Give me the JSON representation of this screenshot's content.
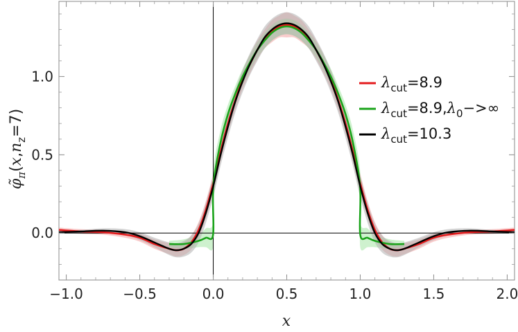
{
  "chart_data": {
    "type": "line",
    "title": "",
    "xlabel": "x",
    "ylabel": "φ̃π(x,nz=7)",
    "xlim": [
      -1.05,
      2.05
    ],
    "ylim": [
      -0.3,
      1.48
    ],
    "xticks": [
      -1.0,
      -0.5,
      0.0,
      0.5,
      1.0,
      1.5,
      2.0
    ],
    "xtick_labels": [
      "−1.0",
      "−0.5",
      "0.0",
      "0.5",
      "1.0",
      "1.5",
      "2.0"
    ],
    "yticks": [
      0.0,
      0.5,
      1.0
    ],
    "ytick_labels": [
      "0.0",
      "0.5",
      "1.0"
    ],
    "grid": false,
    "legend_position": "right",
    "series": [
      {
        "name": "λcut=8.9",
        "legend_parts": [
          {
            "t": "λ",
            "i": true
          },
          {
            "t": "cut",
            "sub": true
          },
          {
            "t": "=8.9"
          }
        ],
        "color": "#e31a1c",
        "band_color": "#f4a3a3",
        "x": [
          -1.05,
          -0.9,
          -0.75,
          -0.6,
          -0.5,
          -0.4,
          -0.3,
          -0.25,
          -0.2,
          -0.15,
          -0.1,
          -0.05,
          0.0,
          0.05,
          0.1,
          0.15,
          0.2,
          0.25,
          0.3,
          0.35,
          0.4,
          0.45,
          0.5,
          0.55,
          0.6,
          0.65,
          0.7,
          0.75,
          0.8,
          0.85,
          0.9,
          0.95,
          1.0,
          1.05,
          1.1,
          1.15,
          1.2,
          1.25,
          1.3,
          1.4,
          1.5,
          1.6,
          1.75,
          1.9,
          2.05
        ],
        "y": [
          0.02,
          0.01,
          0.005,
          -0.01,
          -0.03,
          -0.07,
          -0.1,
          -0.11,
          -0.1,
          -0.06,
          0.02,
          0.15,
          0.32,
          0.52,
          0.7,
          0.85,
          0.98,
          1.08,
          1.17,
          1.24,
          1.29,
          1.32,
          1.33,
          1.32,
          1.29,
          1.24,
          1.17,
          1.08,
          0.98,
          0.85,
          0.7,
          0.52,
          0.32,
          0.15,
          0.02,
          -0.06,
          -0.1,
          -0.11,
          -0.1,
          -0.07,
          -0.03,
          -0.01,
          0.005,
          0.01,
          0.02
        ],
        "band": [
          0.015,
          0.015,
          0.015,
          0.02,
          0.025,
          0.03,
          0.035,
          0.04,
          0.04,
          0.045,
          0.05,
          0.055,
          0.06,
          0.06,
          0.06,
          0.06,
          0.06,
          0.06,
          0.06,
          0.06,
          0.07,
          0.07,
          0.08,
          0.07,
          0.07,
          0.06,
          0.06,
          0.06,
          0.06,
          0.06,
          0.06,
          0.06,
          0.06,
          0.055,
          0.05,
          0.045,
          0.04,
          0.04,
          0.035,
          0.03,
          0.025,
          0.02,
          0.015,
          0.015,
          0.015
        ]
      },
      {
        "name": "λcut=8.9,λ0->∞",
        "legend_parts": [
          {
            "t": "λ",
            "i": true
          },
          {
            "t": "cut",
            "sub": true
          },
          {
            "t": "=8.9,"
          },
          {
            "t": "λ",
            "i": true
          },
          {
            "t": "0",
            "sub": true
          },
          {
            "t": "−>∞"
          }
        ],
        "color": "#1aa31a",
        "band_color": "#a6e6a6",
        "x": [
          -0.3,
          -0.2,
          -0.1,
          -0.05,
          -0.001,
          0.0,
          0.05,
          0.1,
          0.15,
          0.2,
          0.25,
          0.3,
          0.35,
          0.4,
          0.45,
          0.5,
          0.55,
          0.6,
          0.65,
          0.7,
          0.75,
          0.8,
          0.85,
          0.9,
          0.95,
          0.999,
          1.0,
          1.05,
          1.1,
          1.2,
          1.3
        ],
        "y": [
          -0.07,
          -0.07,
          -0.05,
          -0.03,
          -0.01,
          0.3,
          0.58,
          0.76,
          0.89,
          1.0,
          1.09,
          1.17,
          1.23,
          1.28,
          1.31,
          1.32,
          1.31,
          1.28,
          1.23,
          1.17,
          1.09,
          1.0,
          0.89,
          0.76,
          0.58,
          0.3,
          -0.01,
          -0.03,
          -0.05,
          -0.07,
          -0.07
        ],
        "band": [
          0.02,
          0.03,
          0.04,
          0.06,
          0.08,
          0.1,
          0.08,
          0.06,
          0.05,
          0.05,
          0.05,
          0.05,
          0.05,
          0.05,
          0.05,
          0.05,
          0.05,
          0.05,
          0.05,
          0.05,
          0.05,
          0.05,
          0.05,
          0.06,
          0.08,
          0.1,
          0.08,
          0.06,
          0.04,
          0.03,
          0.02
        ]
      },
      {
        "name": "λcut=10.3",
        "legend_parts": [
          {
            "t": "λ",
            "i": true
          },
          {
            "t": "cut",
            "sub": true
          },
          {
            "t": "=10.3"
          }
        ],
        "color": "#000000",
        "band_color": "#b0b0b0",
        "x": [
          -1.05,
          -0.9,
          -0.75,
          -0.6,
          -0.5,
          -0.4,
          -0.3,
          -0.25,
          -0.2,
          -0.15,
          -0.1,
          -0.05,
          0.0,
          0.05,
          0.1,
          0.15,
          0.2,
          0.25,
          0.3,
          0.35,
          0.4,
          0.45,
          0.5,
          0.55,
          0.6,
          0.65,
          0.7,
          0.75,
          0.8,
          0.85,
          0.9,
          0.95,
          1.0,
          1.05,
          1.1,
          1.15,
          1.2,
          1.25,
          1.3,
          1.4,
          1.5,
          1.6,
          1.75,
          1.9,
          2.05
        ],
        "y": [
          0.005,
          0.01,
          0.015,
          0.005,
          -0.02,
          -0.06,
          -0.1,
          -0.11,
          -0.1,
          -0.07,
          0.0,
          0.13,
          0.3,
          0.5,
          0.68,
          0.84,
          0.97,
          1.08,
          1.17,
          1.25,
          1.3,
          1.33,
          1.34,
          1.33,
          1.3,
          1.25,
          1.17,
          1.08,
          0.97,
          0.84,
          0.68,
          0.5,
          0.3,
          0.13,
          0.0,
          -0.07,
          -0.1,
          -0.11,
          -0.1,
          -0.06,
          -0.02,
          0.005,
          0.015,
          0.01,
          0.005
        ],
        "band": [
          0.01,
          0.01,
          0.015,
          0.02,
          0.025,
          0.03,
          0.04,
          0.045,
          0.05,
          0.055,
          0.06,
          0.065,
          0.07,
          0.07,
          0.07,
          0.07,
          0.07,
          0.07,
          0.07,
          0.07,
          0.07,
          0.07,
          0.07,
          0.07,
          0.07,
          0.07,
          0.07,
          0.07,
          0.07,
          0.07,
          0.07,
          0.07,
          0.07,
          0.065,
          0.06,
          0.055,
          0.05,
          0.045,
          0.04,
          0.03,
          0.025,
          0.02,
          0.015,
          0.01,
          0.01
        ]
      }
    ]
  }
}
